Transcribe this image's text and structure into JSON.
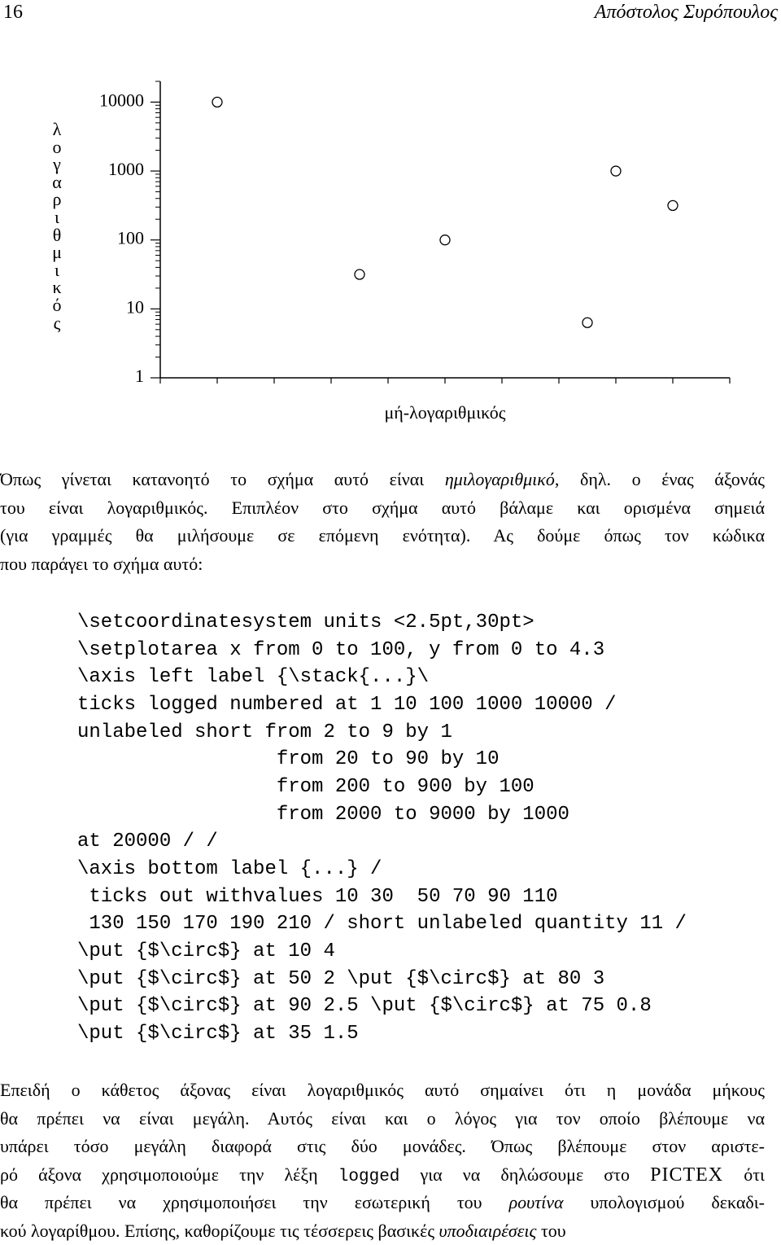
{
  "header": {
    "page_number": "16",
    "running_title": "Απόστολος Συρόπουλος"
  },
  "chart_data": {
    "type": "scatter",
    "y_label": "λογαριθμικός",
    "x_label": "μή-λογαριθμικός",
    "x": [
      10,
      50,
      80,
      90,
      75,
      35
    ],
    "values": [
      10000,
      100,
      1000,
      316.23,
      6.31,
      31.62
    ],
    "color": "#000000",
    "marker": "open-circle",
    "ylog": true,
    "xlim": [
      0,
      100
    ],
    "xticks": [
      0,
      10,
      20,
      30,
      40,
      50,
      60,
      70,
      80,
      90,
      100
    ],
    "ylim": [
      1,
      19952.62
    ],
    "yticks": [
      1,
      10,
      100,
      1000,
      10000
    ],
    "y_minor_ticks": [
      2,
      3,
      4,
      5,
      6,
      7,
      8,
      9,
      20,
      30,
      40,
      50,
      60,
      70,
      80,
      90,
      200,
      300,
      400,
      500,
      600,
      700,
      800,
      900,
      2000,
      3000,
      4000,
      5000,
      6000,
      7000,
      8000,
      9000,
      20000
    ]
  },
  "paragraph_1": {
    "lines": [
      [
        "Όπως γίνεται κατανοητό το σχήμα αυτό είναι ",
        {
          "text": "ημιλογαριθμικό",
          "style": "italic"
        },
        ", δηλ. ο ένας άξονάς"
      ],
      [
        "του είναι λογαριθμικός. Επιπλέον στο σχήμα αυτό βάλαμε και ορισμένα σημειά"
      ],
      [
        "(για γραμμές θα μιλήσουμε σε επόμενη ενότητα). Ας δούμε όπως τον κώδικα"
      ],
      [
        "που παράγει το σχήμα αυτό:"
      ]
    ]
  },
  "code": {
    "lines": [
      "\\setcoordinatesystem units <2.5pt,30pt>",
      "\\setplotarea x from 0 to 100, y from 0 to 4.3",
      "\\axis left label {\\stack{...}\\",
      "ticks logged numbered at 1 10 100 1000 10000 /",
      "unlabeled short from 2 to 9 by 1",
      "                 from 20 to 90 by 10",
      "                 from 200 to 900 by 100",
      "                 from 2000 to 9000 by 1000",
      "at 20000 / /",
      "\\axis bottom label {...} /",
      " ticks out withvalues 10 30  50 70 90 110",
      " 130 150 170 190 210 / short unlabeled quantity 11 /",
      "\\put {$\\circ$} at 10 4",
      "\\put {$\\circ$} at 50 2 \\put {$\\circ$} at 80 3",
      "\\put {$\\circ$} at 90 2.5 \\put {$\\circ$} at 75 0.8",
      "\\put {$\\circ$} at 35 1.5"
    ]
  },
  "paragraph_2": {
    "lines": [
      [
        "Επειδή ο κάθετος άξονας είναι λογαριθμικός αυτό σημαίνει ότι η μονάδα μήκους"
      ],
      [
        "θα πρέπει να είναι μεγάλη. Αυτός είναι και ο λόγος για τον οποίο βλέπουμε να"
      ],
      [
        "υπάρει τόσο μεγάλη διαφορά στις δύο μονάδες. Όπως βλέπουμε στον αριστε-"
      ],
      [
        "ρό άξονα χρησιμοποιούμε την λέξη ",
        {
          "text": "logged",
          "style": "monospace"
        },
        " για να δηλώσουμε στο ",
        {
          "text": "PICTEX",
          "style": "logo"
        },
        " ότι"
      ],
      [
        "θα πρέπει να χρησιμοποιήσει την εσωτερική του ",
        {
          "text": "ρουτίνα",
          "style": "italic"
        },
        " υπολογισμού δεκαδι-"
      ],
      [
        "κού λογαρίθμου. Επίσης, καθορίζουμε τις τέσσερεις βασικές ",
        {
          "text": "υποδιαιρέσεις",
          "style": "italic"
        },
        " του"
      ]
    ]
  }
}
